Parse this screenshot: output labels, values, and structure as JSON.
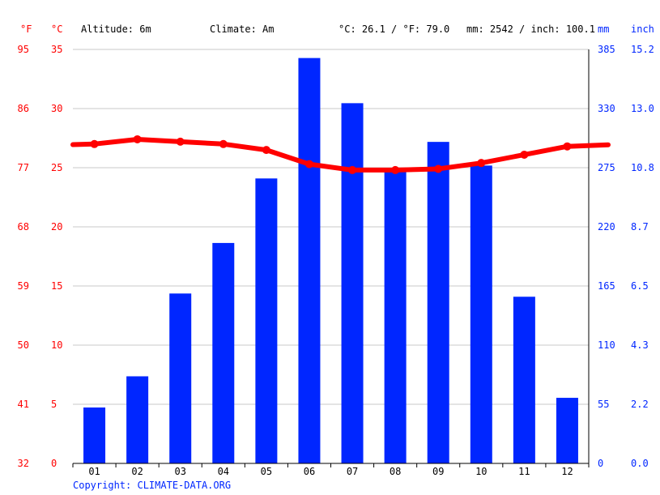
{
  "header": {
    "unit_f": "°F",
    "unit_c": "°C",
    "altitude": "Altitude: 6m",
    "climate": "Climate: Am",
    "averages_temp": "°C: 26.1 / °F: 79.0",
    "averages_precip": "mm: 2542 / inch: 100.1",
    "unit_mm": "mm",
    "unit_inch": "inch"
  },
  "footer": {
    "copyright": "Copyright: CLIMATE-DATA.ORG"
  },
  "colors": {
    "temperature": "#ff0000",
    "precipitation": "#0026ff",
    "grid": "#c8c8c8"
  },
  "chart_data": {
    "type": "bar",
    "categories": [
      "01",
      "02",
      "03",
      "04",
      "05",
      "06",
      "07",
      "08",
      "09",
      "10",
      "11",
      "12"
    ],
    "series": [
      {
        "kind": "bar",
        "values": [
          52,
          81,
          158,
          205,
          265,
          377,
          335,
          275,
          299,
          277,
          155,
          61
        ]
      },
      {
        "kind": "line",
        "values": [
          27.0,
          27.4,
          27.2,
          27.0,
          26.5,
          25.3,
          24.8,
          24.8,
          24.9,
          25.4,
          26.1,
          26.8
        ]
      }
    ],
    "axes": {
      "celsius": {
        "min": 0,
        "max": 35,
        "ticks": [
          "0",
          "5",
          "10",
          "15",
          "20",
          "25",
          "30",
          "35"
        ]
      },
      "fahrenheit": {
        "ticks": [
          "32",
          "41",
          "50",
          "59",
          "68",
          "77",
          "86",
          "95"
        ]
      },
      "mm": {
        "min": 0,
        "max": 385,
        "ticks": [
          "0",
          "55",
          "110",
          "165",
          "220",
          "275",
          "330",
          "385"
        ]
      },
      "inch": {
        "ticks": [
          "0.0",
          "2.2",
          "4.3",
          "6.5",
          "8.7",
          "10.8",
          "13.0",
          "15.2"
        ]
      }
    },
    "grid": true
  }
}
